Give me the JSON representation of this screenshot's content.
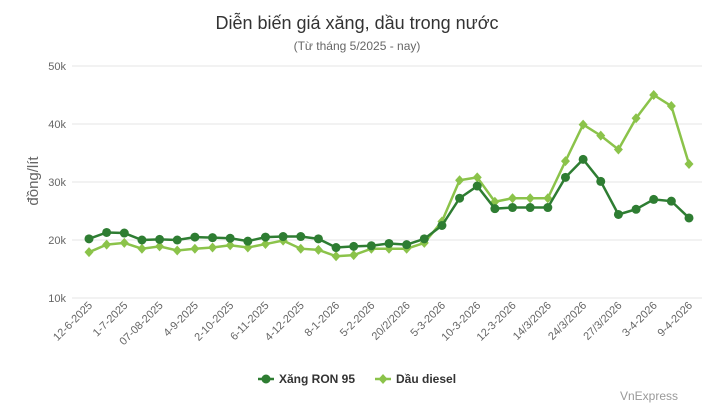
{
  "chart_data": {
    "type": "line",
    "title": "Diễn biến giá xăng, dầu trong nước",
    "subtitle": "(Từ tháng 5/2025 - nay)",
    "ylabel": "đồng/lít",
    "xlabel": "",
    "ylim": [
      10000,
      50000
    ],
    "yticks": [
      {
        "v": 10000,
        "label": "10k"
      },
      {
        "v": 20000,
        "label": "20k"
      },
      {
        "v": 30000,
        "label": "30k"
      },
      {
        "v": 40000,
        "label": "40k"
      },
      {
        "v": 50000,
        "label": "50k"
      }
    ],
    "grid": true,
    "legend_position": "bottom-center",
    "categories": [
      "12-6-2025",
      "",
      "1-7-2025",
      "",
      "07-08-2025",
      "",
      "4-9-2025",
      "",
      "2-10-2025",
      "",
      "6-11-2025",
      "",
      "4-12-2025",
      "",
      "8-1-2026",
      "",
      "5-2-2026",
      "",
      "20/2/2026",
      "",
      "5-3-2026",
      "",
      "10-3-2026",
      "",
      "12-3-2026",
      "",
      "14/3/2026",
      "",
      "24/3/2026",
      "",
      "27/3/2026",
      "",
      "3-4-2026",
      "",
      "9-4-2026"
    ],
    "series": [
      {
        "name": "Xăng RON 95",
        "color": "#2e7d32",
        "marker": "circle",
        "values": [
          20200,
          21300,
          21200,
          20000,
          20100,
          20000,
          20500,
          20400,
          20300,
          19800,
          20500,
          20600,
          20600,
          20200,
          18700,
          18900,
          19000,
          19400,
          19200,
          20200,
          22500,
          27200,
          29300,
          25400,
          25600,
          25600,
          25600,
          30800,
          33900,
          30100,
          24400,
          25300,
          27000,
          26700,
          23800
        ]
      },
      {
        "name": "Dầu diesel",
        "color": "#8bc34a",
        "marker": "diamond",
        "values": [
          17900,
          19200,
          19500,
          18500,
          18900,
          18200,
          18500,
          18700,
          19100,
          18700,
          19300,
          19900,
          18500,
          18300,
          17200,
          17400,
          18500,
          18500,
          18500,
          19500,
          23200,
          30300,
          30800,
          26600,
          27200,
          27200,
          27200,
          33600,
          39900,
          38000,
          35600,
          41000,
          45000,
          43100,
          33100
        ]
      }
    ]
  },
  "credit": "VnExpress"
}
